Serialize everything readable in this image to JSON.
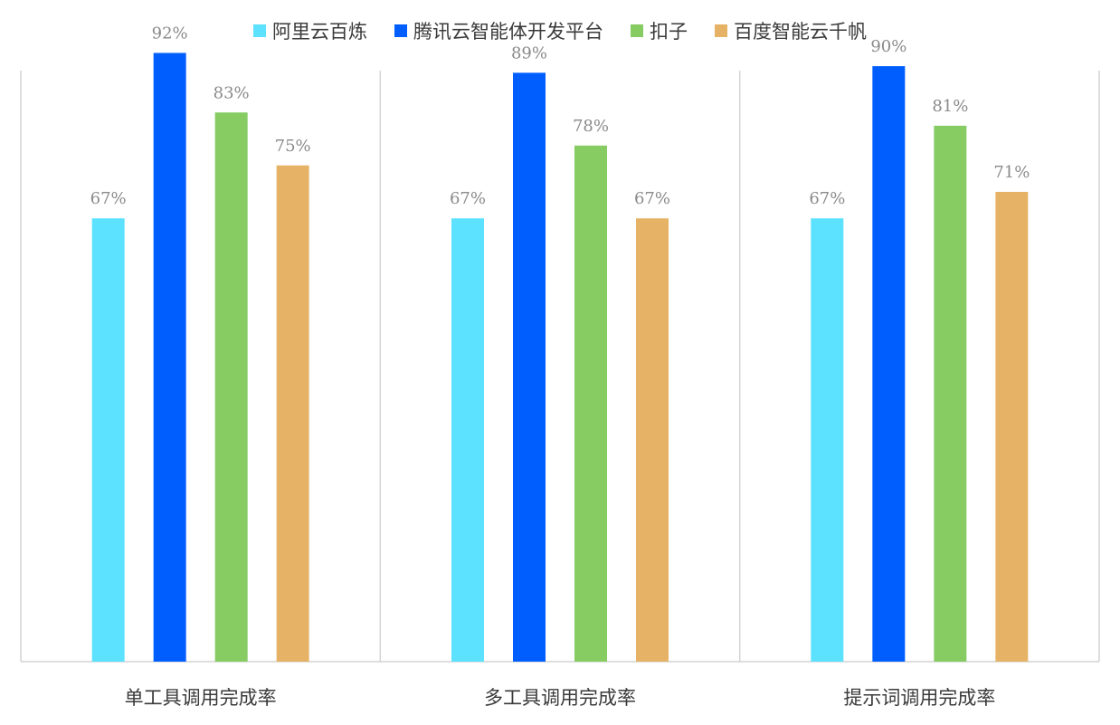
{
  "chart_data": {
    "type": "bar",
    "categories": [
      "单工具调用完成率",
      "多工具调用完成率",
      "提示词调用完成率"
    ],
    "series": [
      {
        "name": "阿里云百炼",
        "color": "#5CE1FF",
        "values": [
          67,
          67,
          67
        ],
        "labels": [
          "67%",
          "67%",
          "67%"
        ]
      },
      {
        "name": "腾讯云智能体开发平台",
        "color": "#005EFF",
        "values": [
          92,
          89,
          90
        ],
        "labels": [
          "92%",
          "89%",
          "90%"
        ]
      },
      {
        "name": "扣子",
        "color": "#86CC63",
        "values": [
          83,
          78,
          81
        ],
        "labels": [
          "83%",
          "78%",
          "81%"
        ]
      },
      {
        "name": "百度智能云千帆",
        "color": "#E6B366",
        "values": [
          75,
          67,
          71
        ],
        "labels": [
          "75%",
          "67%",
          "71%"
        ]
      }
    ],
    "ylim": [
      0,
      100
    ],
    "legend_position": "top",
    "grid": false,
    "category_dividers": true,
    "axis_color": "#d4d4d4"
  }
}
